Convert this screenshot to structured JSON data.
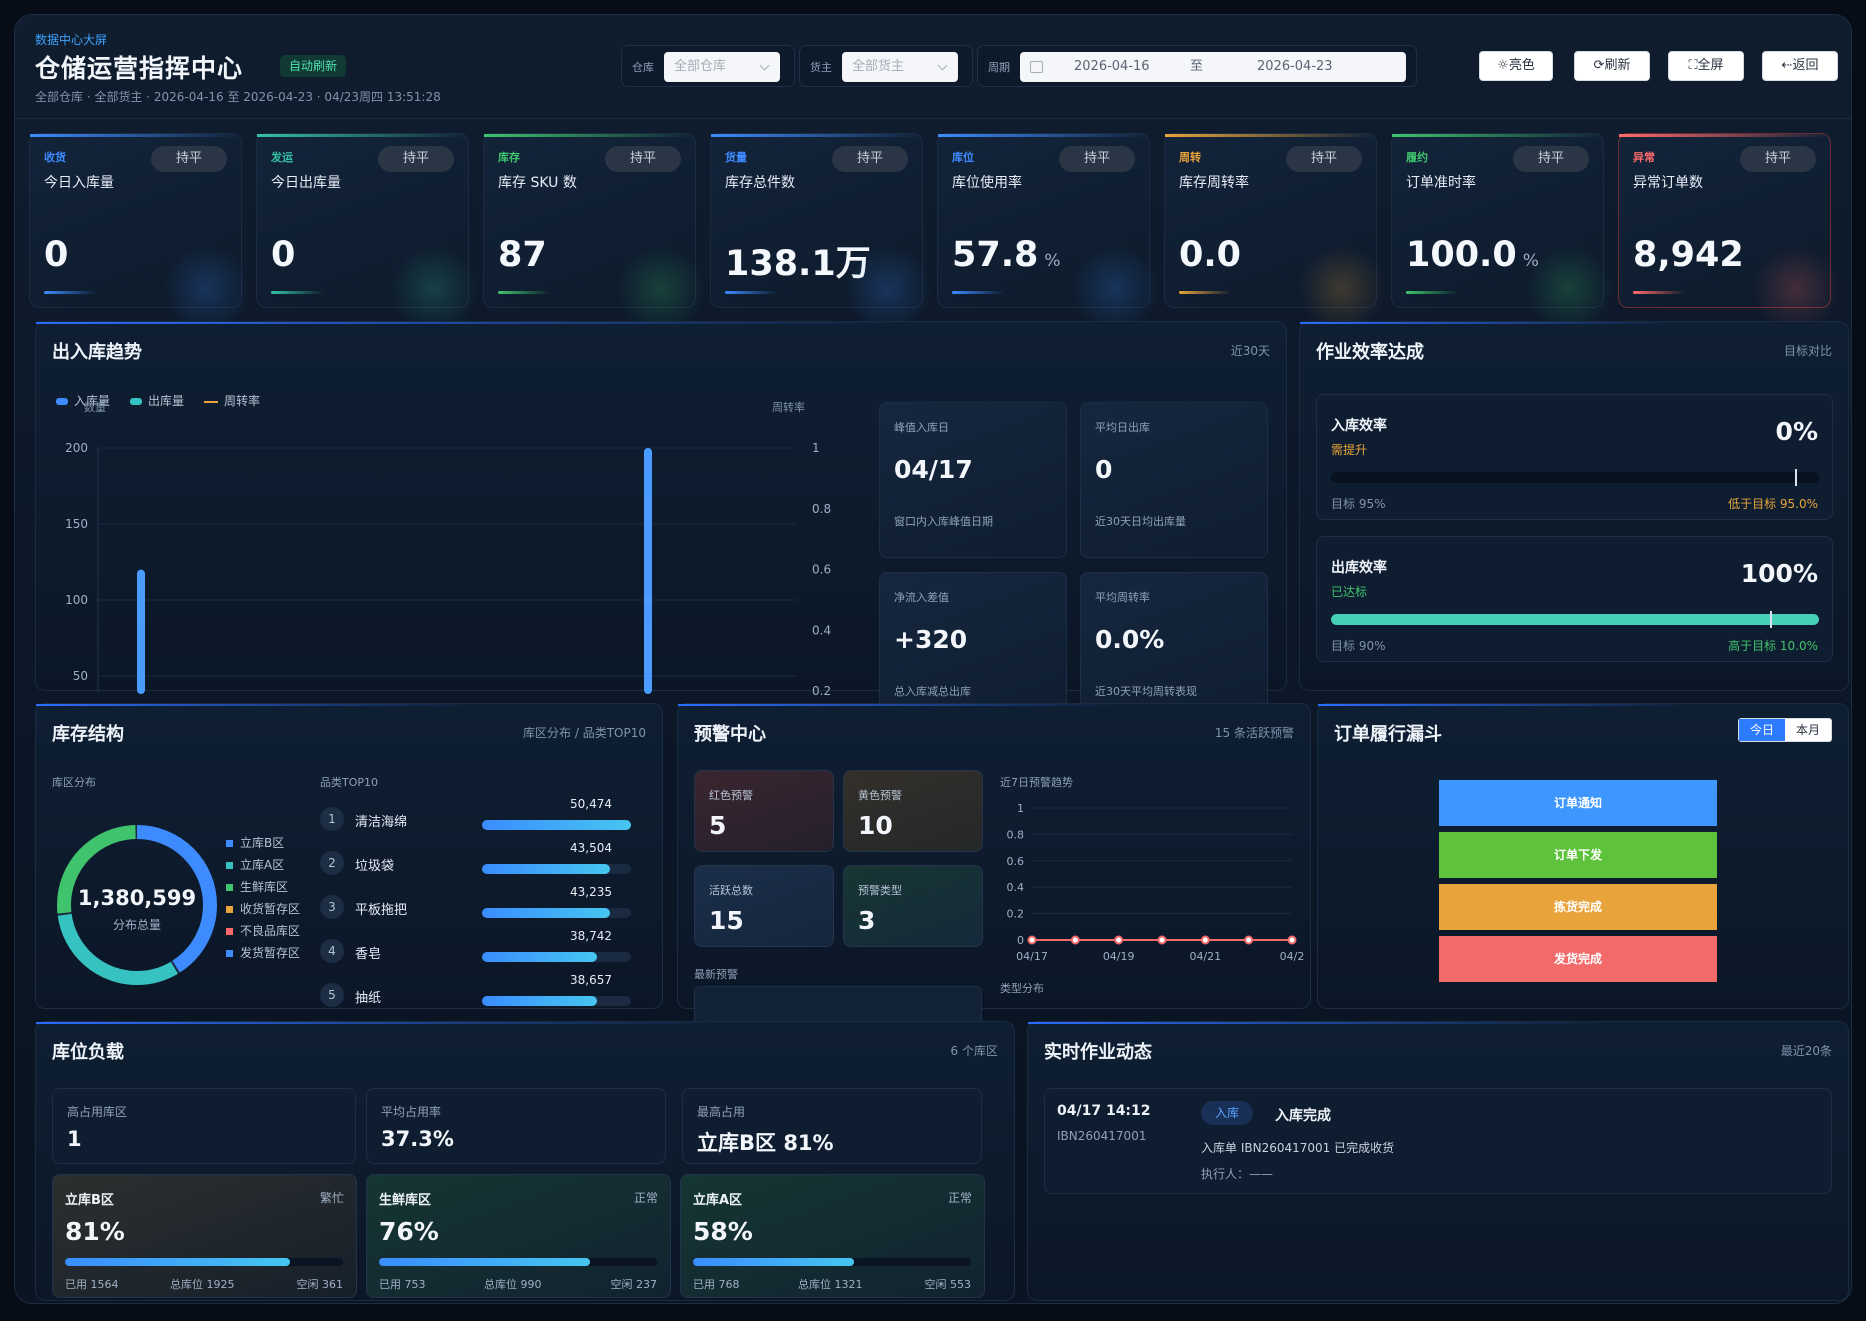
{
  "header": {
    "kicker": "数据中心大屏",
    "title": "仓储运营指挥中心",
    "auto_badge": "自动刷新",
    "subline": "全部仓库 · 全部货主 · 2026-04-16 至 2026-04-23 · 04/23周四 13:51:28",
    "warehouse_label": "仓库",
    "warehouse_value": "全部仓库",
    "owner_label": "货主",
    "owner_value": "全部货主",
    "period_label": "周期",
    "date_start": "2026-04-16",
    "date_sep": "至",
    "date_end": "2026-04-23",
    "buttons": {
      "light": "☼亮色",
      "refresh": "⟳刷新",
      "fullscreen": "⛶全屏",
      "back": "⇠返回"
    }
  },
  "kpis": [
    {
      "cat": "收货",
      "name": "今日入库量",
      "pill": "持平",
      "value": "0",
      "unit": "",
      "color": "#3d8bff"
    },
    {
      "cat": "发运",
      "name": "今日出库量",
      "pill": "持平",
      "value": "0",
      "unit": "",
      "color": "#36c2a6"
    },
    {
      "cat": "库存",
      "name": "库存 SKU 数",
      "pill": "持平",
      "value": "87",
      "unit": "",
      "color": "#3fc46d"
    },
    {
      "cat": "货量",
      "name": "库存总件数",
      "pill": "持平",
      "value": "138.1万",
      "unit": "",
      "color": "#3d8bff"
    },
    {
      "cat": "库位",
      "name": "库位使用率",
      "pill": "持平",
      "value": "57.8",
      "unit": "%",
      "color": "#3d8bff"
    },
    {
      "cat": "周转",
      "name": "库存周转率",
      "pill": "持平",
      "value": "0.0",
      "unit": "",
      "color": "#e8a43a"
    },
    {
      "cat": "履约",
      "name": "订单准时率",
      "pill": "持平",
      "value": "100.0",
      "unit": "%",
      "color": "#3fc46d"
    },
    {
      "cat": "异常",
      "name": "异常订单数",
      "pill": "持平",
      "value": "8,942",
      "unit": "",
      "color": "#ff6b6b"
    }
  ],
  "trend": {
    "title": "出入库趋势",
    "range": "近30天",
    "legend": [
      "入库量",
      "出库量",
      "周转率"
    ],
    "left_axis_title": "数量",
    "right_axis_title": "周转率",
    "y_ticks": [
      "200",
      "150",
      "100",
      "50"
    ],
    "y2_ticks": [
      "1",
      "0.8",
      "0.6",
      "0.4",
      "0.2"
    ],
    "stats": [
      {
        "label": "峰值入库日",
        "value": "04/17",
        "desc": "窗口内入库峰值日期"
      },
      {
        "label": "平均日出库",
        "value": "0",
        "desc": "近30天日均出库量"
      },
      {
        "label": "净流入差值",
        "value": "+320",
        "desc": "总入库减总出库"
      },
      {
        "label": "平均周转率",
        "value": "0.0%",
        "desc": "近30天平均周转表现"
      }
    ]
  },
  "chart_data": {
    "type": "bar",
    "series": [
      {
        "name": "入库量",
        "values": [
          120,
          200
        ]
      },
      {
        "name": "出库量",
        "values": [
          0,
          0
        ]
      }
    ],
    "ylim": [
      0,
      200
    ],
    "y2lim": [
      0,
      1
    ]
  },
  "efficiency": {
    "title": "作业效率达成",
    "right": "目标对比",
    "items": [
      {
        "name": "入库效率",
        "status": "需提升",
        "status_color": "#e8a43a",
        "value": "0%",
        "fill": 0,
        "target_pos": 0.95,
        "target": "目标 95%",
        "gap": "低于目标 95.0%",
        "gap_color": "#e8a43a",
        "fill_color": "#3d8bff"
      },
      {
        "name": "出库效率",
        "status": "已达标",
        "status_color": "#3fc46d",
        "value": "100%",
        "fill": 1.0,
        "target_pos": 0.9,
        "target": "目标 90%",
        "gap": "高于目标 10.0%",
        "gap_color": "#3fc46d",
        "fill_color": "#46d0b8"
      }
    ]
  },
  "inventory": {
    "title": "库存结构",
    "right": "库区分布 / 品类TOP10",
    "zone_label": "库区分布",
    "total": "1,380,599",
    "total_label": "分布总量",
    "zones": [
      {
        "name": "立库B区",
        "color": "#3d8bff"
      },
      {
        "name": "立库A区",
        "color": "#36c2c0"
      },
      {
        "name": "生鲜库区",
        "color": "#3fc46d"
      },
      {
        "name": "收货暂存区",
        "color": "#e8a43a"
      },
      {
        "name": "不良品库区",
        "color": "#ff6b6b"
      },
      {
        "name": "发货暂存区",
        "color": "#3d8bff"
      }
    ],
    "top_label": "品类TOP10",
    "top": [
      {
        "rank": "1",
        "name": "清洁海绵",
        "value": "50,474",
        "fill": 1.0
      },
      {
        "rank": "2",
        "name": "垃圾袋",
        "value": "43,504",
        "fill": 0.86
      },
      {
        "rank": "3",
        "name": "平板拖把",
        "value": "43,235",
        "fill": 0.86
      },
      {
        "rank": "4",
        "name": "香皂",
        "value": "38,742",
        "fill": 0.77
      },
      {
        "rank": "5",
        "name": "抽纸",
        "value": "38,657",
        "fill": 0.77
      }
    ]
  },
  "alerts": {
    "title": "预警中心",
    "right": "15 条活跃预警",
    "cards": [
      {
        "label": "红色预警",
        "value": "5"
      },
      {
        "label": "黄色预警",
        "value": "10"
      },
      {
        "label": "活跃总数",
        "value": "15"
      },
      {
        "label": "预警类型",
        "value": "3"
      }
    ],
    "latest_label": "最新预警",
    "trend_label": "近7日预警趋势",
    "type_label": "类型分布",
    "y_ticks": [
      "1",
      "0.8",
      "0.6",
      "0.4",
      "0.2",
      "0"
    ],
    "x_ticks": [
      "04/17",
      "04/19",
      "04/21",
      "04/2"
    ]
  },
  "funnel": {
    "title": "订单履行漏斗",
    "tabs": [
      "今日",
      "本月"
    ],
    "stages": [
      {
        "label": "订单通知",
        "color": "#3d97ff"
      },
      {
        "label": "订单下发",
        "color": "#5fc23d"
      },
      {
        "label": "拣货完成",
        "color": "#e8a43a"
      },
      {
        "label": "发货完成",
        "color": "#f26a6a"
      }
    ]
  },
  "load": {
    "title": "库位负载",
    "right": "6 个库区",
    "summary": [
      {
        "label": "高占用库区",
        "value": "1"
      },
      {
        "label": "平均占用率",
        "value": "37.3%"
      },
      {
        "label": "最高占用",
        "value": "立库B区 81%"
      }
    ],
    "zones": [
      {
        "name": "立库B区",
        "status": "繁忙",
        "value": "81%",
        "fill": 0.81,
        "used": "已用 1564",
        "total": "总库位 1925",
        "free": "空闲 361"
      },
      {
        "name": "生鲜库区",
        "status": "正常",
        "value": "76%",
        "fill": 0.76,
        "used": "已用 753",
        "total": "总库位 990",
        "free": "空闲 237"
      },
      {
        "name": "立库A区",
        "status": "正常",
        "value": "58%",
        "fill": 0.58,
        "used": "已用 768",
        "total": "总库位 1321",
        "free": "空闲 553"
      }
    ]
  },
  "activity": {
    "title": "实时作业动态",
    "right": "最近20条",
    "items": [
      {
        "time": "04/17 14:12",
        "id": "IBN260417001",
        "tag": "入库",
        "title": "入库完成",
        "desc": "入库单 IBN260417001 已完成收货",
        "exec": "执行人：——"
      }
    ]
  }
}
